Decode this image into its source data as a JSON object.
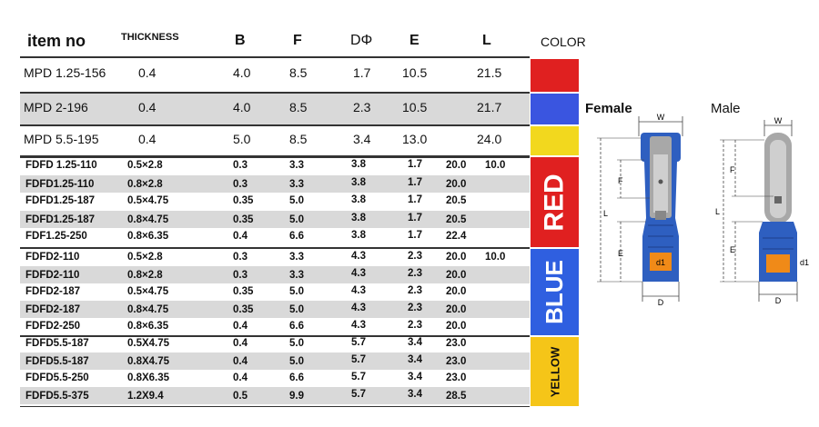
{
  "headers": {
    "item_no": "item no",
    "thickness": "THICKNESS",
    "b": "B",
    "f": "F",
    "d": "DΦ",
    "e": "E",
    "l": "L",
    "color": "COLOR"
  },
  "mpd_rows": [
    {
      "item": "MPD 1.25-156",
      "thickness": "0.4",
      "b": "4.0",
      "f": "8.5",
      "d": "1.7",
      "e": "10.5",
      "l": "21.5",
      "color": "#e02020"
    },
    {
      "item": "MPD 2-196",
      "thickness": "0.4",
      "b": "4.0",
      "f": "8.5",
      "d": "2.3",
      "e": "10.5",
      "l": "21.7",
      "color": "#3a55e0"
    },
    {
      "item": "MPD 5.5-195",
      "thickness": "0.4",
      "b": "5.0",
      "f": "8.5",
      "d": "3.4",
      "e": "13.0",
      "l": "24.0",
      "color": "#f2d81e"
    }
  ],
  "fdfd_groups": [
    {
      "label": "RED",
      "color": "#e02020",
      "text_color": "#ffffff",
      "rows": [
        {
          "item": "FDFD 1.25-110",
          "size": "0.5×2.8",
          "b": "0.3",
          "f": "3.3",
          "d": "3.8",
          "e": "1.7",
          "l": "20.0",
          "extra": "10.0"
        },
        {
          "item": "FDFD1.25-110",
          "size": "0.8×2.8",
          "b": "0.3",
          "f": "3.3",
          "d": "3.8",
          "e": "1.7",
          "l": "20.0",
          "extra": ""
        },
        {
          "item": "FDFD1.25-187",
          "size": "0.5×4.75",
          "b": "0.35",
          "f": "5.0",
          "d": "3.8",
          "e": "1.7",
          "l": "20.5",
          "extra": ""
        },
        {
          "item": "FDFD1.25-187",
          "size": "0.8×4.75",
          "b": "0.35",
          "f": "5.0",
          "d": "3.8",
          "e": "1.7",
          "l": "20.5",
          "extra": ""
        },
        {
          "item": "FDF1.25-250",
          "size": "0.8×6.35",
          "b": "0.4",
          "f": "6.6",
          "d": "3.8",
          "e": "1.7",
          "l": "22.4",
          "extra": ""
        }
      ]
    },
    {
      "label": "BLUE",
      "color": "#2f5fe0",
      "text_color": "#ffffff",
      "rows": [
        {
          "item": "FDFD2-110",
          "size": "0.5×2.8",
          "b": "0.3",
          "f": "3.3",
          "d": "4.3",
          "e": "2.3",
          "l": "20.0",
          "extra": "10.0"
        },
        {
          "item": "FDFD2-110",
          "size": "0.8×2.8",
          "b": "0.3",
          "f": "3.3",
          "d": "4.3",
          "e": "2.3",
          "l": "20.0",
          "extra": ""
        },
        {
          "item": "FDFD2-187",
          "size": "0.5×4.75",
          "b": "0.35",
          "f": "5.0",
          "d": "4.3",
          "e": "2.3",
          "l": "20.0",
          "extra": ""
        },
        {
          "item": "FDFD2-187",
          "size": "0.8×4.75",
          "b": "0.35",
          "f": "5.0",
          "d": "4.3",
          "e": "2.3",
          "l": "20.0",
          "extra": ""
        },
        {
          "item": "FDFD2-250",
          "size": "0.8×6.35",
          "b": "0.4",
          "f": "6.6",
          "d": "4.3",
          "e": "2.3",
          "l": "20.0",
          "extra": ""
        }
      ]
    },
    {
      "label": "YELLOW",
      "color": "#f5c518",
      "text_color": "#111111",
      "rows": [
        {
          "item": "FDFD5.5-187",
          "size": "0.5X4.75",
          "b": "0.4",
          "f": "5.0",
          "d": "5.7",
          "e": "3.4",
          "l": "23.0",
          "extra": ""
        },
        {
          "item": "FDFD5.5-187",
          "size": "0.8X4.75",
          "b": "0.4",
          "f": "5.0",
          "d": "5.7",
          "e": "3.4",
          "l": "23.0",
          "extra": ""
        },
        {
          "item": "FDFD5.5-250",
          "size": "0.8X6.35",
          "b": "0.4",
          "f": "6.6",
          "d": "5.7",
          "e": "3.4",
          "l": "23.0",
          "extra": ""
        },
        {
          "item": "FDFD5.5-375",
          "size": "1.2X9.4",
          "b": "0.5",
          "f": "9.9",
          "d": "5.7",
          "e": "3.4",
          "l": "28.5",
          "extra": ""
        }
      ]
    }
  ],
  "diagrams": {
    "female": {
      "title": "Female",
      "w": "W",
      "f": "F",
      "l": "L",
      "e": "E",
      "d": "D",
      "d1": "d1"
    },
    "male": {
      "title": "Male",
      "w": "W",
      "f": "F",
      "l": "L",
      "e": "E",
      "d": "D",
      "d1": "d1"
    },
    "colors": {
      "insulation": "#2e5fc0",
      "metal": "#a8a8a8",
      "sleeve": "#f08a18"
    }
  }
}
